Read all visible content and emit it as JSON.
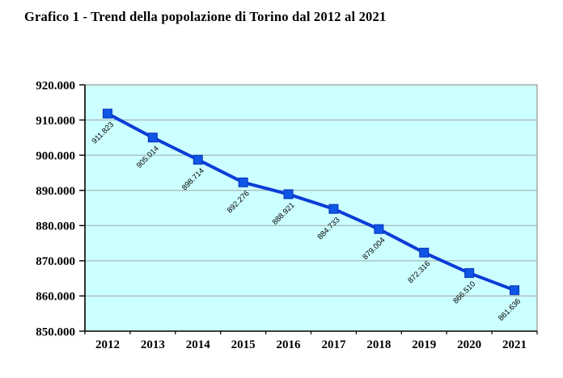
{
  "page": {
    "title": "Grafico 1 - Trend della popolazione di Torino dal 2012 al 2021"
  },
  "chart_data": {
    "type": "line",
    "title": "Grafico 1 - Trend della popolazione di Torino dal 2012 al 2021",
    "categories": [
      "2012",
      "2013",
      "2014",
      "2015",
      "2016",
      "2017",
      "2018",
      "2019",
      "2020",
      "2021"
    ],
    "values": [
      911823,
      905014,
      898714,
      892276,
      888921,
      884733,
      879004,
      872316,
      866510,
      861636
    ],
    "point_labels": [
      "911.823",
      "905.014",
      "898.714",
      "892.276",
      "888.921",
      "884.733",
      "879.004",
      "872.316",
      "866.510",
      "861.636"
    ],
    "xlabel": "",
    "ylabel": "",
    "ylim": [
      850000,
      920000
    ],
    "y_tick_step": 10000,
    "y_tick_labels": [
      "850.000",
      "860.000",
      "870.000",
      "880.000",
      "890.000",
      "900.000",
      "910.000",
      "920.000"
    ],
    "grid": true,
    "legend": "none",
    "marker": "square",
    "colors": {
      "line": "#0C3CD6",
      "marker_fill": "#0F55E6",
      "marker_border": "#0533B8",
      "plot_bg": "#CCFFFF",
      "gridline": "#9CA6A6",
      "plot_border": "#848484",
      "axis": "#000000",
      "text": "#000000"
    }
  }
}
